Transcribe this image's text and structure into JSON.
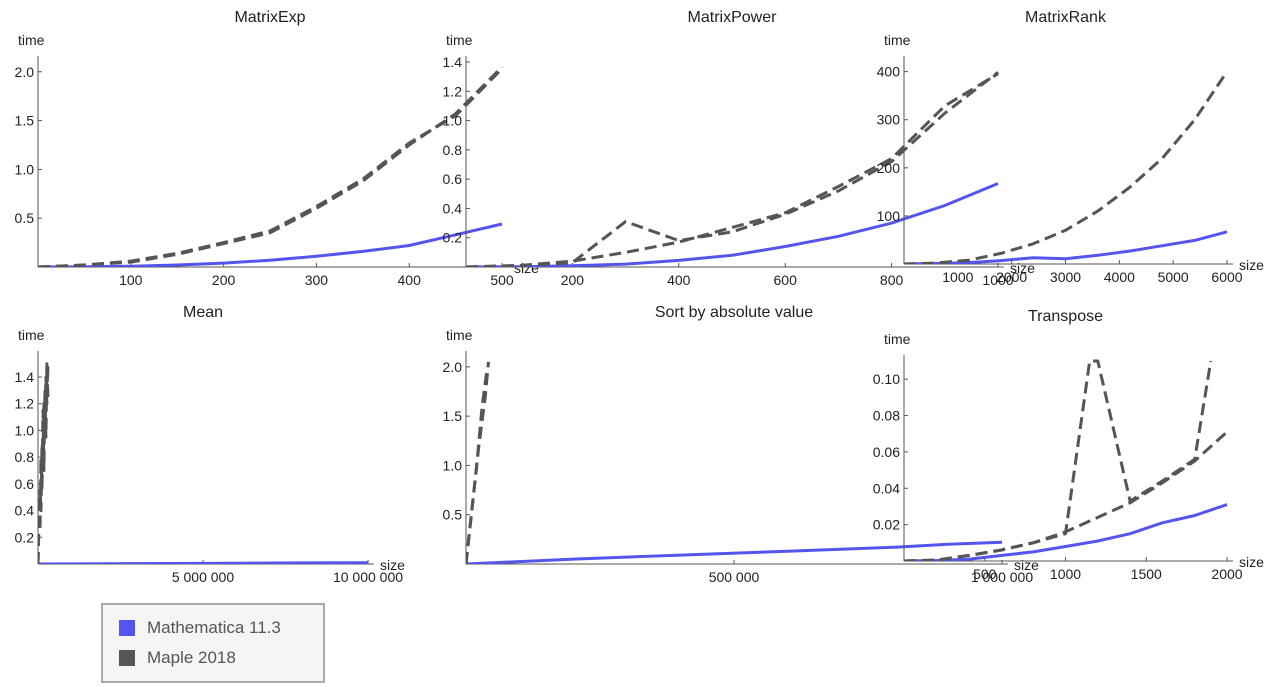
{
  "chart_data": [
    {
      "type": "line",
      "title": "MatrixExp",
      "xlabel": "size",
      "ylabel": "time",
      "xlim": [
        0,
        500
      ],
      "ylim": [
        0,
        2.1
      ],
      "xticks": [
        100,
        200,
        300,
        400,
        500
      ],
      "yticks": [
        0.5,
        1.0,
        1.5,
        2.0
      ],
      "xtick_labels": [
        "100",
        "200",
        "300",
        "400",
        "500"
      ],
      "ytick_labels": [
        "0.5",
        "1.0",
        "1.5",
        "2.0"
      ],
      "series": [
        {
          "name": "Mathematica 11.3",
          "x": [
            0,
            50,
            100,
            150,
            200,
            250,
            300,
            350,
            400,
            450,
            500
          ],
          "y": [
            0,
            0.003,
            0.008,
            0.02,
            0.04,
            0.07,
            0.11,
            0.16,
            0.22,
            0.33,
            0.44
          ]
        },
        {
          "name": "Maple 2018",
          "x": [
            0,
            50,
            100,
            150,
            200,
            250,
            300,
            350,
            400,
            450,
            500
          ],
          "y": [
            0,
            0.02,
            0.06,
            0.14,
            0.25,
            0.37,
            0.62,
            0.9,
            1.27,
            1.55,
            2.03
          ]
        },
        {
          "name": "Maple 2018",
          "x": [
            0,
            50,
            100,
            150,
            200,
            250,
            300,
            350,
            400,
            450,
            500
          ],
          "y": [
            0,
            0.02,
            0.05,
            0.13,
            0.24,
            0.35,
            0.6,
            0.88,
            1.25,
            1.57,
            2.05
          ]
        }
      ]
    },
    {
      "type": "line",
      "title": "MatrixPower",
      "xlabel": "size",
      "ylabel": "time",
      "xlim": [
        0,
        1000
      ],
      "ylim": [
        0,
        1.4
      ],
      "xticks": [
        200,
        400,
        600,
        800,
        1000
      ],
      "yticks": [
        0.2,
        0.4,
        0.6,
        0.8,
        1.0,
        1.2,
        1.4
      ],
      "xtick_labels": [
        "200",
        "400",
        "600",
        "800",
        "1000"
      ],
      "ytick_labels": [
        "0.2",
        "0.4",
        "0.6",
        "0.8",
        "1.0",
        "1.2",
        "1.4"
      ],
      "series": [
        {
          "name": "Mathematica 11.3",
          "x": [
            0,
            100,
            200,
            300,
            400,
            500,
            600,
            700,
            800,
            900,
            1000
          ],
          "y": [
            0,
            0.002,
            0.008,
            0.02,
            0.045,
            0.08,
            0.14,
            0.21,
            0.3,
            0.42,
            0.57
          ]
        },
        {
          "name": "Maple 2018",
          "x": [
            0,
            100,
            200,
            300,
            400,
            500,
            600,
            700,
            800,
            900,
            1000
          ],
          "y": [
            0,
            0.01,
            0.03,
            0.31,
            0.18,
            0.24,
            0.36,
            0.52,
            0.72,
            1.05,
            1.33
          ]
        },
        {
          "name": "Maple 2018",
          "x": [
            0,
            100,
            200,
            300,
            400,
            500,
            600,
            700,
            800,
            900,
            1000
          ],
          "y": [
            0,
            0.01,
            0.04,
            0.1,
            0.17,
            0.27,
            0.37,
            0.55,
            0.74,
            1.1,
            1.32
          ]
        }
      ]
    },
    {
      "type": "line",
      "title": "MatrixRank",
      "xlabel": "size",
      "ylabel": "time",
      "xlim": [
        0,
        6000
      ],
      "ylim": [
        0,
        420
      ],
      "xticks": [
        1000,
        2000,
        3000,
        4000,
        5000,
        6000
      ],
      "yticks": [
        100,
        200,
        300,
        400
      ],
      "xtick_labels": [
        "1000",
        "2000",
        "3000",
        "4000",
        "5000",
        "6000"
      ],
      "ytick_labels": [
        "100",
        "200",
        "300",
        "400"
      ],
      "series": [
        {
          "name": "Mathematica 11.3",
          "x": [
            0,
            600,
            1200,
            1800,
            2400,
            3000,
            3600,
            4200,
            4800,
            5400,
            6000
          ],
          "y": [
            0,
            1,
            3,
            7,
            13,
            11,
            18,
            27,
            38,
            49,
            67
          ]
        },
        {
          "name": "Maple 2018",
          "x": [
            0,
            600,
            1200,
            1800,
            2400,
            3000,
            3600,
            4200,
            4800,
            5400,
            6000
          ],
          "y": [
            0,
            2,
            8,
            22,
            42,
            70,
            110,
            160,
            220,
            300,
            400
          ]
        }
      ]
    },
    {
      "type": "line",
      "title": "Mean",
      "xlabel": "size",
      "ylabel": "time",
      "xlim": [
        0,
        10000000
      ],
      "ylim": [
        0,
        1.55
      ],
      "xticks": [
        5000000,
        10000000
      ],
      "yticks": [
        0.2,
        0.4,
        0.6,
        0.8,
        1.0,
        1.2,
        1.4
      ],
      "xtick_labels": [
        "5 000 000",
        "10 000 000"
      ],
      "ytick_labels": [
        "0.2",
        "0.4",
        "0.6",
        "0.8",
        "1.0",
        "1.2",
        "1.4"
      ],
      "series": [
        {
          "name": "Mathematica 11.3",
          "x": [
            0,
            2000000,
            4000000,
            6000000,
            8000000,
            10000000
          ],
          "y": [
            0,
            0.002,
            0.004,
            0.006,
            0.008,
            0.01
          ]
        },
        {
          "name": "Maple 2018",
          "x": [
            0,
            30000,
            60000,
            90000,
            120000,
            150000,
            180000,
            210000,
            240000,
            270000,
            300000
          ],
          "y": [
            0,
            0.45,
            0.25,
            0.8,
            0.55,
            1.15,
            0.7,
            1.3,
            0.95,
            1.5,
            1.25
          ]
        },
        {
          "name": "Maple 2018",
          "x": [
            0,
            30000,
            60000,
            90000,
            120000,
            150000,
            180000,
            210000,
            240000,
            270000,
            300000
          ],
          "y": [
            0,
            0.3,
            0.55,
            0.4,
            0.9,
            0.75,
            1.2,
            1.05,
            1.4,
            1.2,
            1.48
          ]
        }
      ]
    },
    {
      "type": "line",
      "title": "Sort by absolute value",
      "xlabel": "size",
      "ylabel": "time",
      "xlim": [
        0,
        1000000
      ],
      "ylim": [
        0,
        2.1
      ],
      "xticks": [
        500000,
        1000000
      ],
      "yticks": [
        0.5,
        1.0,
        1.5,
        2.0
      ],
      "xtick_labels": [
        "500 000",
        "1 000 000"
      ],
      "ytick_labels": [
        "0.5",
        "1.0",
        "1.5",
        "2.0"
      ],
      "series": [
        {
          "name": "Mathematica 11.3",
          "x": [
            0,
            200000,
            400000,
            600000,
            800000,
            900000,
            1000000
          ],
          "y": [
            0,
            0.05,
            0.09,
            0.13,
            0.17,
            0.2,
            0.22
          ]
        },
        {
          "name": "Maple 2018",
          "x": [
            0,
            10000,
            20000,
            30000,
            40000
          ],
          "y": [
            0,
            0.5,
            1.0,
            1.6,
            2.0
          ]
        },
        {
          "name": "Maple 2018",
          "x": [
            0,
            12000,
            24000,
            36000,
            42000
          ],
          "y": [
            0,
            0.6,
            1.2,
            1.7,
            2.05
          ]
        }
      ]
    },
    {
      "type": "line",
      "title": "Transpose",
      "xlabel": "size",
      "ylabel": "time",
      "xlim": [
        0,
        2000
      ],
      "ylim": [
        0,
        0.11
      ],
      "xticks": [
        500,
        1000,
        1500,
        2000
      ],
      "yticks": [
        0.02,
        0.04,
        0.06,
        0.08,
        0.1
      ],
      "xtick_labels": [
        "500",
        "1000",
        "1500",
        "2000"
      ],
      "ytick_labels": [
        "0.02",
        "0.04",
        "0.06",
        "0.08",
        "0.10"
      ],
      "series": [
        {
          "name": "Mathematica 11.3",
          "x": [
            0,
            200,
            400,
            600,
            800,
            1000,
            1200,
            1400,
            1600,
            1800,
            2000
          ],
          "y": [
            0,
            0.0003,
            0.001,
            0.003,
            0.005,
            0.008,
            0.011,
            0.015,
            0.021,
            0.025,
            0.031
          ]
        },
        {
          "name": "Maple 2018",
          "x": [
            0,
            200,
            400,
            600,
            800,
            1000,
            1200,
            1400,
            1600,
            1800,
            2000
          ],
          "y": [
            0,
            0.0005,
            0.003,
            0.006,
            0.01,
            0.016,
            0.024,
            0.032,
            0.043,
            0.055,
            0.071
          ]
        },
        {
          "name": "Maple 2018",
          "x": [
            0,
            200,
            400,
            600,
            800,
            1000,
            1150,
            1200,
            1400,
            1600,
            1800,
            1900
          ],
          "y": [
            0,
            0.0005,
            0.003,
            0.006,
            0.01,
            0.015,
            0.11,
            0.11,
            0.033,
            0.044,
            0.056,
            0.11
          ]
        }
      ]
    }
  ],
  "legend": {
    "items": [
      {
        "label": "Mathematica 11.3",
        "color": "#5555ee"
      },
      {
        "label": "Maple 2018",
        "color": "#555555"
      }
    ]
  },
  "colors": {
    "mathematica": "#5555ee",
    "maple": "#555555",
    "axis": "#555555",
    "text": "#222222"
  }
}
